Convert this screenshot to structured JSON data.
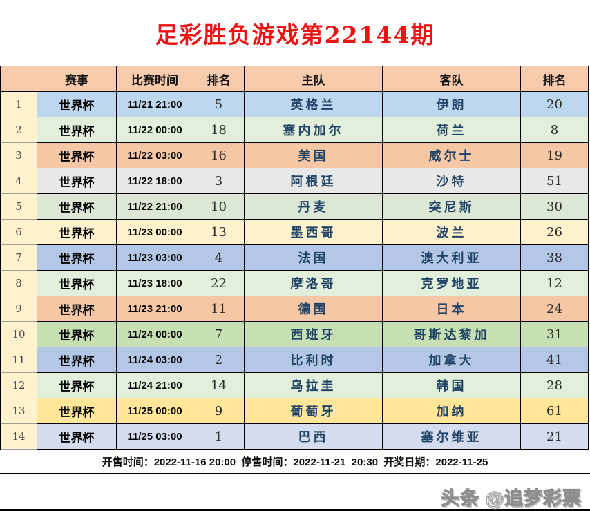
{
  "title": "足彩胜负游戏第22144期",
  "colors": {
    "title_red": "#EE1111",
    "header_bg": "#F8CBAD",
    "number_column_bg": "#FFF2CC",
    "team_text_blue": "#1F4266",
    "border_black": "#000000"
  },
  "table": {
    "headers": [
      "",
      "赛事",
      "比赛时间",
      "排名",
      "主队",
      "客队",
      "排名"
    ],
    "rows": [
      {
        "no": "1",
        "competition": "世界杯",
        "time": "11/21 21:00",
        "home_rank": "5",
        "home_team": "英格兰",
        "away_team": "伊朗",
        "away_rank": "20",
        "row_color": "#BDD7EE"
      },
      {
        "no": "2",
        "competition": "世界杯",
        "time": "11/22 00:00",
        "home_rank": "18",
        "home_team": "塞内加尔",
        "away_team": "荷兰",
        "away_rank": "8",
        "row_color": "#E2EFDA"
      },
      {
        "no": "3",
        "competition": "世界杯",
        "time": "11/22 03:00",
        "home_rank": "16",
        "home_team": "美国",
        "away_team": "威尔士",
        "away_rank": "19",
        "row_color": "#F6C7A5"
      },
      {
        "no": "4",
        "competition": "世界杯",
        "time": "11/22 18:00",
        "home_rank": "3",
        "home_team": "阿根廷",
        "away_team": "沙特",
        "away_rank": "51",
        "row_color": "#E8E8E8"
      },
      {
        "no": "5",
        "competition": "世界杯",
        "time": "11/22 21:00",
        "home_rank": "10",
        "home_team": "丹麦",
        "away_team": "突尼斯",
        "away_rank": "30",
        "row_color": "#DCE8D5"
      },
      {
        "no": "6",
        "competition": "世界杯",
        "time": "11/23 00:00",
        "home_rank": "13",
        "home_team": "墨西哥",
        "away_team": "波兰",
        "away_rank": "26",
        "row_color": "#FFF2CC"
      },
      {
        "no": "7",
        "competition": "世界杯",
        "time": "11/23 03:00",
        "home_rank": "4",
        "home_team": "法国",
        "away_team": "澳大利亚",
        "away_rank": "38",
        "row_color": "#B4C7E7"
      },
      {
        "no": "8",
        "competition": "世界杯",
        "time": "11/23 18:00",
        "home_rank": "22",
        "home_team": "摩洛哥",
        "away_team": "克罗地亚",
        "away_rank": "12",
        "row_color": "#E2EFDA"
      },
      {
        "no": "9",
        "competition": "世界杯",
        "time": "11/23 21:00",
        "home_rank": "11",
        "home_team": "德国",
        "away_team": "日本",
        "away_rank": "24",
        "row_color": "#F6C7A5"
      },
      {
        "no": "10",
        "competition": "世界杯",
        "time": "11/24 00:00",
        "home_rank": "7",
        "home_team": "西班牙",
        "away_team": "哥斯达黎加",
        "away_rank": "31",
        "row_color": "#C6E0B4"
      },
      {
        "no": "11",
        "competition": "世界杯",
        "time": "11/24 03:00",
        "home_rank": "2",
        "home_team": "比利时",
        "away_team": "加拿大",
        "away_rank": "41",
        "row_color": "#B4C7E7"
      },
      {
        "no": "12",
        "competition": "世界杯",
        "time": "11/24 21:00",
        "home_rank": "14",
        "home_team": "乌拉圭",
        "away_team": "韩国",
        "away_rank": "28",
        "row_color": "#E2EFDA"
      },
      {
        "no": "13",
        "competition": "世界杯",
        "time": "11/25 00:00",
        "home_rank": "9",
        "home_team": "葡萄牙",
        "away_team": "加纳",
        "away_rank": "61",
        "row_color": "#FFE699"
      },
      {
        "no": "14",
        "competition": "世界杯",
        "time": "11/25 03:00",
        "home_rank": "1",
        "home_team": "巴西",
        "away_team": "塞尔维亚",
        "away_rank": "21",
        "row_color": "#D4DCEE"
      }
    ]
  },
  "footer": {
    "sales_info": "开售时间：2022-11-16 20:00  停售时间：2022-11-21  20:30  开奖日期：2022-11-25"
  },
  "watermark": "头条 @追梦彩票"
}
